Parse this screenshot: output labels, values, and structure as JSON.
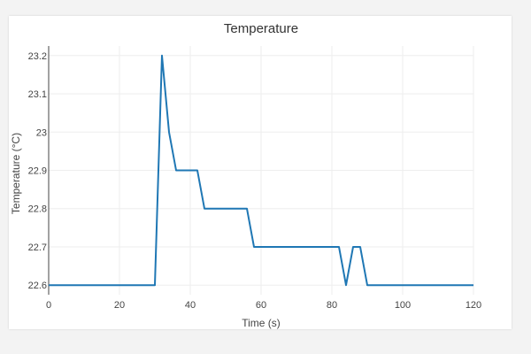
{
  "chart_data": {
    "type": "line",
    "title": "Temperature",
    "xlabel": "Time (s)",
    "ylabel": "Temperature (°C)",
    "xlim": [
      0,
      120
    ],
    "ylim": [
      22.575,
      23.225
    ],
    "grid": true,
    "legend": "none",
    "x_ticks": [
      0,
      20,
      40,
      60,
      80,
      100,
      120
    ],
    "x_tick_labels": [
      "0",
      "20",
      "40",
      "60",
      "80",
      "100",
      "120"
    ],
    "y_ticks": [
      22.6,
      22.7,
      22.8,
      22.9,
      23.0,
      23.1,
      23.2
    ],
    "y_tick_labels": [
      "22.6",
      "22.7",
      "22.8",
      "22.9",
      "23",
      "23.1",
      "23.2"
    ],
    "series": [
      {
        "color": "#1f77b4",
        "x": [
          0,
          30,
          32,
          34,
          36,
          42,
          44,
          56,
          58,
          82,
          84,
          86,
          88,
          90,
          120
        ],
        "y": [
          22.6,
          22.6,
          23.2,
          23.0,
          22.9,
          22.9,
          22.8,
          22.8,
          22.7,
          22.7,
          22.6,
          22.7,
          22.7,
          22.6,
          22.6
        ]
      }
    ]
  }
}
